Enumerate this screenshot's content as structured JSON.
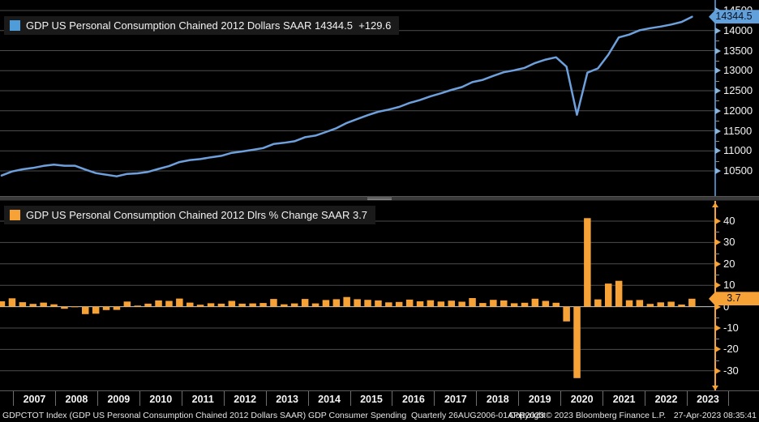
{
  "top_panel": {
    "legend_label": "GDP US Personal Consumption Chained 2012 Dollars SAAR 14344.5  +129.6",
    "legend_swatch_color": "#4e9cd9",
    "axis_ticks": [
      "14500",
      "14000",
      "13500",
      "13000",
      "12500",
      "12000",
      "11500",
      "11000",
      "10500"
    ],
    "last_value_badge": "14344.5",
    "axis_color": "#4a7fb5",
    "tick_color": "#8ab4dc",
    "badge_color": "#62a0dc"
  },
  "bottom_panel": {
    "legend_label": "GDP US Personal Consumption Chained 2012 Dlrs % Change SAAR 3.7",
    "legend_swatch_color": "#f7a237",
    "axis_ticks": [
      "40",
      "30",
      "20",
      "10",
      "0",
      "-10",
      "-20",
      "-30"
    ],
    "last_value_badge": "3.7",
    "axis_color": "#f7a237",
    "tick_color": "#f7a237",
    "badge_color": "#f7a237"
  },
  "x_axis": {
    "years": [
      "2007",
      "2008",
      "2009",
      "2010",
      "2011",
      "2012",
      "2013",
      "2014",
      "2015",
      "2016",
      "2017",
      "2018",
      "2019",
      "2020",
      "2021",
      "2022",
      "2023"
    ]
  },
  "footer": {
    "left": "GDPCTOT Index (GDP US Personal Consumption Chained 2012 Dollars SAAR) GDP Consumer Spending  Quarterly 26AUG2006-01APR2023",
    "center": "Copyright© 2023 Bloomberg Finance L.P.",
    "right": "27-Apr-2023 08:35:41"
  },
  "chart_data": [
    {
      "type": "line",
      "title": "GDP US Personal Consumption Chained 2012 Dollars SAAR",
      "x_start": "2006-Q3",
      "x_end": "2023-Q1",
      "x_freq": "quarterly",
      "last_value": 14344.5,
      "change": "+129.6",
      "color": "#6da0dc",
      "yticks": [
        14500,
        14000,
        13500,
        13000,
        12500,
        12000,
        11500,
        11000,
        10500
      ],
      "grid": true,
      "legend_position": "top-left",
      "values": [
        10385,
        10485,
        10540,
        10575,
        10625,
        10655,
        10630,
        10630,
        10535,
        10445,
        10405,
        10365,
        10425,
        10440,
        10475,
        10550,
        10620,
        10720,
        10770,
        10795,
        10840,
        10875,
        10950,
        10985,
        11025,
        11070,
        11170,
        11200,
        11240,
        11340,
        11380,
        11470,
        11565,
        11695,
        11795,
        11890,
        11975,
        12030,
        12095,
        12195,
        12270,
        12360,
        12435,
        12520,
        12590,
        12715,
        12770,
        12870,
        12960,
        13010,
        13070,
        13190,
        13275,
        13335,
        13100,
        11900,
        12950,
        13055,
        13400,
        13830,
        13900,
        14010,
        14060,
        14100,
        14150,
        14215,
        14344.5
      ]
    },
    {
      "type": "bar",
      "title": "GDP US Personal Consumption Chained 2012 Dlrs % Change SAAR",
      "x_start": "2006-Q3",
      "x_end": "2023-Q1",
      "x_freq": "quarterly",
      "last_value": 3.7,
      "color": "#f7a237",
      "yticks": [
        40,
        30,
        20,
        10,
        0,
        -10,
        -20,
        -30
      ],
      "grid": true,
      "legend_position": "top-left",
      "values": [
        2.5,
        3.9,
        2.1,
        1.3,
        1.9,
        1.1,
        -1.0,
        0.1,
        -3.5,
        -3.3,
        -1.6,
        -1.5,
        2.4,
        0.5,
        1.4,
        2.9,
        2.7,
        3.8,
        1.9,
        0.9,
        1.6,
        1.4,
        2.7,
        1.4,
        1.5,
        1.7,
        3.6,
        1.1,
        1.5,
        3.6,
        1.5,
        3.1,
        3.5,
        4.5,
        3.5,
        3.2,
        2.9,
        2.0,
        2.2,
        3.3,
        2.5,
        3.0,
        2.4,
        2.8,
        2.3,
        4.0,
        1.7,
        3.2,
        2.9,
        1.6,
        1.8,
        3.7,
        2.7,
        1.8,
        -6.9,
        -33.4,
        41.4,
        3.4,
        10.8,
        12.1,
        3.0,
        3.1,
        1.3,
        2.0,
        2.3,
        1.0,
        3.7
      ]
    }
  ]
}
